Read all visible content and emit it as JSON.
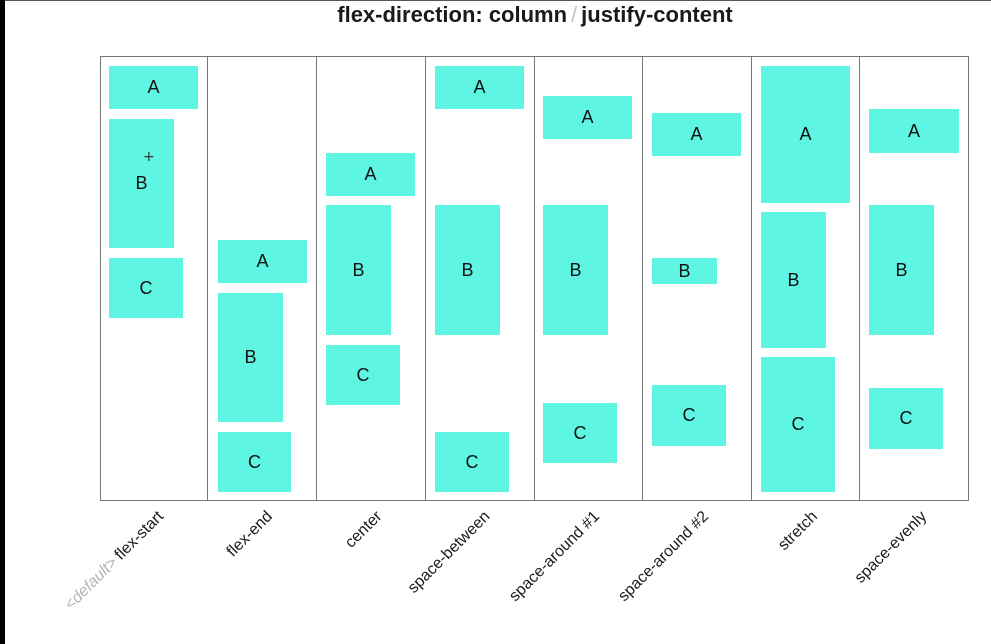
{
  "title": {
    "prefix": "flex-direction: column",
    "separator": "/",
    "suffix": "justify-content"
  },
  "default_note": "<default>",
  "columns": [
    {
      "label": "flex-start",
      "boxes": [
        "A",
        "B",
        "C"
      ]
    },
    {
      "label": "flex-end",
      "boxes": [
        "A",
        "B",
        "C"
      ]
    },
    {
      "label": "center",
      "boxes": [
        "A",
        "B",
        "C"
      ]
    },
    {
      "label": "space-between",
      "boxes": [
        "A",
        "B",
        "C"
      ]
    },
    {
      "label": "space-around #1",
      "boxes": [
        "A",
        "B",
        "C"
      ]
    },
    {
      "label": "space-around #2",
      "boxes": [
        "A",
        "B",
        "C"
      ]
    },
    {
      "label": "stretch",
      "boxes": [
        "A",
        "B",
        "C"
      ]
    },
    {
      "label": "space-evenly",
      "boxes": [
        "A",
        "B",
        "C"
      ]
    }
  ],
  "colors": {
    "box": "#5ef5e3",
    "border": "#777777",
    "note": "#b5b5b5"
  }
}
